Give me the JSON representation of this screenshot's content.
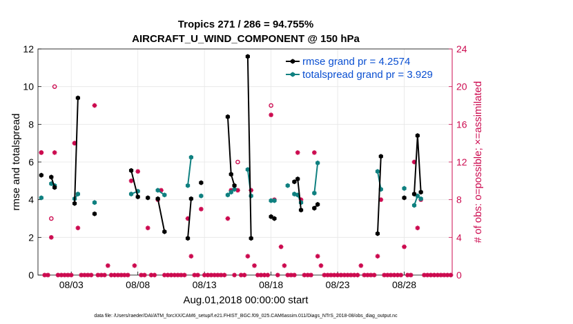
{
  "chart_data": {
    "type": "line",
    "title_line1": "Tropics 271 / 286 = 94.755%",
    "title_line2": "AIRCRAFT_U_WIND_COMPONENT @ 150 hPa",
    "xlabel": "Aug.01,2018 00:00:00 start",
    "ylabel_left": "rmse and totalspread",
    "ylabel_right": "# of obs: o=possible; ×=assimilated",
    "xlim": [
      0.5,
      31.6
    ],
    "ylim_left": [
      0,
      12
    ],
    "ylim_right": [
      0,
      24
    ],
    "x_ticks": [
      {
        "x": 3,
        "label": "08/03"
      },
      {
        "x": 8,
        "label": "08/08"
      },
      {
        "x": 13,
        "label": "08/13"
      },
      {
        "x": 18,
        "label": "08/18"
      },
      {
        "x": 23,
        "label": "08/23"
      },
      {
        "x": 28,
        "label": "08/28"
      }
    ],
    "y_ticks_left": [
      "0",
      "2",
      "4",
      "6",
      "8",
      "10",
      "12"
    ],
    "y_ticks_right": [
      "0",
      "4",
      "8",
      "12",
      "16",
      "20",
      "24"
    ],
    "grid": true,
    "colors": {
      "rmse": "#000000",
      "spread": "#0f8080",
      "obs": "#cc0a4f",
      "legend_text": "#0a4fd1"
    },
    "series": [
      {
        "name": "rmse grand pr = 4.2574",
        "marker": "hexagon",
        "segments": [
          [
            [
              0.75,
              5.3
            ]
          ],
          [
            [
              1.5,
              5.2
            ],
            [
              1.75,
              4.65
            ]
          ],
          [
            [
              3.25,
              3.8
            ],
            [
              3.5,
              9.4
            ]
          ],
          [
            [
              4.75,
              3.25
            ]
          ],
          [
            [
              7.5,
              5.55
            ],
            [
              8.0,
              4.15
            ]
          ],
          [
            [
              8.75,
              4.1
            ]
          ],
          [
            [
              9.5,
              4.05
            ],
            [
              10.0,
              2.3
            ]
          ],
          [
            [
              11.75,
              1.95
            ],
            [
              12.0,
              4.05
            ]
          ],
          [
            [
              12.75,
              4.9
            ]
          ],
          [
            [
              14.75,
              8.4
            ],
            [
              15.0,
              5.35
            ],
            [
              15.25,
              4.75
            ]
          ],
          [
            [
              16.25,
              11.6
            ],
            [
              16.5,
              1.95
            ]
          ],
          [
            [
              18.0,
              3.1
            ],
            [
              18.25,
              3.0
            ]
          ],
          [
            [
              19.75,
              4.95
            ],
            [
              20.0,
              5.1
            ],
            [
              20.25,
              3.45
            ]
          ],
          [
            [
              21.25,
              3.55
            ],
            [
              21.5,
              3.75
            ]
          ],
          [
            [
              26.0,
              2.2
            ],
            [
              26.25,
              6.3
            ]
          ],
          [
            [
              28.0,
              4.1
            ]
          ],
          [
            [
              28.75,
              4.3
            ],
            [
              29.0,
              7.4
            ],
            [
              29.25,
              4.4
            ]
          ]
        ]
      },
      {
        "name": "totalspread grand pr = 3.929",
        "marker": "hexagon",
        "segments": [
          [
            [
              0.75,
              4.1
            ]
          ],
          [
            [
              1.5,
              4.85
            ],
            [
              1.75,
              4.75
            ]
          ],
          [
            [
              3.25,
              4.05
            ],
            [
              3.5,
              4.3
            ]
          ],
          [
            [
              4.75,
              3.85
            ]
          ],
          [
            [
              7.5,
              4.3
            ],
            [
              8.0,
              4.45
            ]
          ],
          [
            [
              9.5,
              4.5
            ],
            [
              10.0,
              4.25
            ]
          ],
          [
            [
              11.75,
              4.75
            ],
            [
              12.0,
              6.25
            ]
          ],
          [
            [
              12.75,
              4.2
            ]
          ],
          [
            [
              14.75,
              4.25
            ],
            [
              15.0,
              4.4
            ],
            [
              15.25,
              4.55
            ]
          ],
          [
            [
              16.25,
              5.6
            ],
            [
              16.5,
              4.2
            ]
          ],
          [
            [
              18.0,
              3.95
            ],
            [
              18.25,
              3.95
            ]
          ],
          [
            [
              19.25,
              4.75
            ]
          ],
          [
            [
              19.75,
              4.3
            ],
            [
              20.0,
              4.25
            ],
            [
              20.25,
              3.85
            ]
          ],
          [
            [
              21.25,
              4.35
            ],
            [
              21.5,
              5.95
            ]
          ],
          [
            [
              26.0,
              5.5
            ],
            [
              26.25,
              4.55
            ]
          ],
          [
            [
              28.0,
              4.6
            ]
          ],
          [
            [
              28.75,
              3.7
            ],
            [
              29.0,
              4.2
            ],
            [
              29.25,
              4.05
            ]
          ]
        ]
      }
    ],
    "obs_possible": [
      {
        "x": 0.75,
        "y": 13
      },
      {
        "x": 1.5,
        "y": 6
      },
      {
        "x": 1.75,
        "y": 20
      },
      {
        "x": 3.25,
        "y": 14
      },
      {
        "x": 15.5,
        "y": 12
      },
      {
        "x": 18.0,
        "y": 18
      }
    ],
    "obs_assimilated": [
      {
        "x": 0.75,
        "y": 13
      },
      {
        "x": 1.0,
        "y": 0
      },
      {
        "x": 1.25,
        "y": 0
      },
      {
        "x": 1.5,
        "y": 4
      },
      {
        "x": 1.75,
        "y": 13
      },
      {
        "x": 2.0,
        "y": 0
      },
      {
        "x": 2.25,
        "y": 0
      },
      {
        "x": 2.5,
        "y": 0
      },
      {
        "x": 2.75,
        "y": 0
      },
      {
        "x": 3.0,
        "y": 0
      },
      {
        "x": 3.25,
        "y": 14
      },
      {
        "x": 3.5,
        "y": 5
      },
      {
        "x": 3.75,
        "y": 0
      },
      {
        "x": 4.0,
        "y": 0
      },
      {
        "x": 4.25,
        "y": 0
      },
      {
        "x": 4.5,
        "y": 0
      },
      {
        "x": 4.75,
        "y": 18
      },
      {
        "x": 5.0,
        "y": 0
      },
      {
        "x": 5.25,
        "y": 0
      },
      {
        "x": 5.5,
        "y": 0
      },
      {
        "x": 5.75,
        "y": 1
      },
      {
        "x": 6.0,
        "y": 0
      },
      {
        "x": 6.25,
        "y": 0
      },
      {
        "x": 6.5,
        "y": 0
      },
      {
        "x": 6.75,
        "y": 0
      },
      {
        "x": 7.0,
        "y": 0
      },
      {
        "x": 7.25,
        "y": 0
      },
      {
        "x": 7.5,
        "y": 10
      },
      {
        "x": 7.75,
        "y": 1
      },
      {
        "x": 8.0,
        "y": 11
      },
      {
        "x": 8.25,
        "y": 0
      },
      {
        "x": 8.5,
        "y": 0
      },
      {
        "x": 8.75,
        "y": 5
      },
      {
        "x": 9.0,
        "y": 0
      },
      {
        "x": 9.25,
        "y": 0
      },
      {
        "x": 9.5,
        "y": 8
      },
      {
        "x": 9.75,
        "y": 9
      },
      {
        "x": 10.0,
        "y": 0
      },
      {
        "x": 10.25,
        "y": 0
      },
      {
        "x": 10.5,
        "y": 0
      },
      {
        "x": 10.75,
        "y": 0
      },
      {
        "x": 11.0,
        "y": 0
      },
      {
        "x": 11.25,
        "y": 0
      },
      {
        "x": 11.5,
        "y": 0
      },
      {
        "x": 11.75,
        "y": 6
      },
      {
        "x": 12.0,
        "y": 2
      },
      {
        "x": 12.25,
        "y": 0
      },
      {
        "x": 12.5,
        "y": 0
      },
      {
        "x": 12.75,
        "y": 7
      },
      {
        "x": 13.0,
        "y": 0
      },
      {
        "x": 13.25,
        "y": 0
      },
      {
        "x": 13.5,
        "y": 0
      },
      {
        "x": 13.75,
        "y": 0
      },
      {
        "x": 14.0,
        "y": 0
      },
      {
        "x": 14.25,
        "y": 0
      },
      {
        "x": 14.5,
        "y": 0
      },
      {
        "x": 14.75,
        "y": 6
      },
      {
        "x": 15.0,
        "y": 9
      },
      {
        "x": 15.25,
        "y": 0
      },
      {
        "x": 15.5,
        "y": 9
      },
      {
        "x": 15.75,
        "y": 0
      },
      {
        "x": 16.0,
        "y": 0
      },
      {
        "x": 16.25,
        "y": 2
      },
      {
        "x": 16.5,
        "y": 9
      },
      {
        "x": 16.75,
        "y": 1
      },
      {
        "x": 17.0,
        "y": 0
      },
      {
        "x": 17.25,
        "y": 0
      },
      {
        "x": 17.5,
        "y": 0
      },
      {
        "x": 17.75,
        "y": 0
      },
      {
        "x": 18.0,
        "y": 17
      },
      {
        "x": 18.25,
        "y": 8
      },
      {
        "x": 18.5,
        "y": 0
      },
      {
        "x": 18.75,
        "y": 3
      },
      {
        "x": 19.0,
        "y": 1
      },
      {
        "x": 19.25,
        "y": 0
      },
      {
        "x": 19.5,
        "y": 0
      },
      {
        "x": 19.75,
        "y": 0
      },
      {
        "x": 20.0,
        "y": 13
      },
      {
        "x": 20.25,
        "y": 8
      },
      {
        "x": 20.5,
        "y": 0
      },
      {
        "x": 20.75,
        "y": 0
      },
      {
        "x": 21.0,
        "y": 0
      },
      {
        "x": 21.25,
        "y": 13
      },
      {
        "x": 21.5,
        "y": 2
      },
      {
        "x": 21.75,
        "y": 1
      },
      {
        "x": 22.0,
        "y": 0
      },
      {
        "x": 22.25,
        "y": 0
      },
      {
        "x": 22.5,
        "y": 0
      },
      {
        "x": 22.75,
        "y": 0
      },
      {
        "x": 23.0,
        "y": 0
      },
      {
        "x": 23.25,
        "y": 0
      },
      {
        "x": 23.5,
        "y": 0
      },
      {
        "x": 23.75,
        "y": 0
      },
      {
        "x": 24.0,
        "y": 0
      },
      {
        "x": 24.25,
        "y": 0
      },
      {
        "x": 24.5,
        "y": 0
      },
      {
        "x": 24.75,
        "y": 1
      },
      {
        "x": 25.0,
        "y": 0
      },
      {
        "x": 25.25,
        "y": 0
      },
      {
        "x": 25.5,
        "y": 0
      },
      {
        "x": 25.75,
        "y": 0
      },
      {
        "x": 26.0,
        "y": 2
      },
      {
        "x": 26.25,
        "y": 8
      },
      {
        "x": 26.5,
        "y": 0
      },
      {
        "x": 26.75,
        "y": 0
      },
      {
        "x": 27.0,
        "y": 0
      },
      {
        "x": 27.25,
        "y": 0
      },
      {
        "x": 27.5,
        "y": 0
      },
      {
        "x": 27.75,
        "y": 0
      },
      {
        "x": 28.0,
        "y": 3
      },
      {
        "x": 28.25,
        "y": 0
      },
      {
        "x": 28.5,
        "y": 0
      },
      {
        "x": 28.75,
        "y": 12
      },
      {
        "x": 29.0,
        "y": 5
      },
      {
        "x": 29.25,
        "y": 8
      },
      {
        "x": 29.5,
        "y": 0
      },
      {
        "x": 29.75,
        "y": 0
      },
      {
        "x": 30.0,
        "y": 0
      },
      {
        "x": 30.25,
        "y": 0
      },
      {
        "x": 30.5,
        "y": 0
      },
      {
        "x": 30.75,
        "y": 0
      },
      {
        "x": 31.0,
        "y": 0
      },
      {
        "x": 31.25,
        "y": 0
      },
      {
        "x": 31.5,
        "y": 0
      }
    ],
    "legend": {
      "placement": "top-right",
      "entries": [
        "rmse grand pr = 4.2574",
        "totalspread grand pr = 3.929"
      ]
    },
    "footnote": "data file: /Users/raeder/DAI/ATM_forcXX/CAM6_setup/f.e21.FHIST_BGC.f09_025.CAM6assim.011/Diags_NTrS_2018-08/obs_diag_output.nc"
  }
}
